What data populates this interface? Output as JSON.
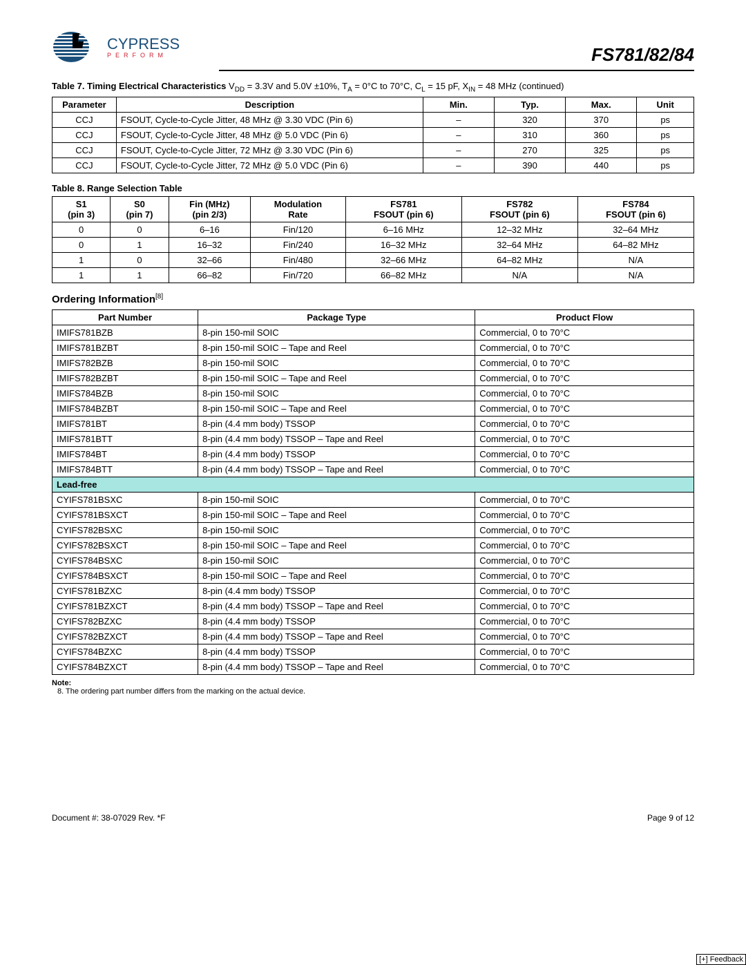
{
  "header": {
    "logo_name": "CYPRESS",
    "logo_tag": "PERFORM",
    "part": "FS781/82/84"
  },
  "table7": {
    "caption_bold": "Table 7. Timing Electrical Characteristics ",
    "caption_rest_a": "V",
    "caption_rest_b": " = 3.3V and 5.0V ±10%, T",
    "caption_rest_c": " = 0°C to 70°C, C",
    "caption_rest_d": " = 15 pF, X",
    "caption_rest_e": " = 48 MHz  (continued)",
    "cols": [
      "Parameter",
      "Description",
      "Min.",
      "Typ.",
      "Max.",
      "Unit"
    ],
    "rows": [
      [
        "CCJ",
        "FSOUT, Cycle-to-Cycle Jitter, 48 MHz @ 3.30 VDC (Pin 6)",
        "–",
        "320",
        "370",
        "ps"
      ],
      [
        "CCJ",
        "FSOUT, Cycle-to-Cycle Jitter, 48 MHz @ 5.0 VDC (Pin 6)",
        "–",
        "310",
        "360",
        "ps"
      ],
      [
        "CCJ",
        "FSOUT, Cycle-to-Cycle Jitter, 72 MHz @ 3.30 VDC (Pin 6)",
        "–",
        "270",
        "325",
        "ps"
      ],
      [
        "CCJ",
        "FSOUT, Cycle-to-Cycle Jitter, 72 MHz @ 5.0 VDC (Pin 6)",
        "–",
        "390",
        "440",
        "ps"
      ]
    ]
  },
  "table8": {
    "caption": "Table 8. Range Selection Table",
    "cols": [
      {
        "l1": "S1",
        "l2": "(pin 3)"
      },
      {
        "l1": "S0",
        "l2": "(pin 7)"
      },
      {
        "l1": "Fin (MHz)",
        "l2": "(pin 2/3)"
      },
      {
        "l1": "Modulation",
        "l2": "Rate"
      },
      {
        "l1": "FS781",
        "l2": "FSOUT (pin 6)"
      },
      {
        "l1": "FS782",
        "l2": "FSOUT (pin 6)"
      },
      {
        "l1": "FS784",
        "l2": "FSOUT (pin 6)"
      }
    ],
    "rows": [
      [
        "0",
        "0",
        "6–16",
        "Fin/120",
        "6–16 MHz",
        "12–32 MHz",
        "32–64 MHz"
      ],
      [
        "0",
        "1",
        "16–32",
        "Fin/240",
        "16–32 MHz",
        "32–64 MHz",
        "64–82 MHz"
      ],
      [
        "1",
        "0",
        "32–66",
        "Fin/480",
        "32–66 MHz",
        "64–82 MHz",
        "N/A"
      ],
      [
        "1",
        "1",
        "66–82",
        "Fin/720",
        "66–82 MHz",
        "N/A",
        "N/A"
      ]
    ]
  },
  "ordering": {
    "heading": "Ordering Information",
    "note_ref": "[8]",
    "cols": [
      "Part Number",
      "Package Type",
      "Product Flow"
    ],
    "rows": [
      [
        "IMIFS781BZB",
        "8-pin 150-mil SOIC",
        "Commercial, 0 to 70°C"
      ],
      [
        "IMIFS781BZBT",
        "8-pin 150-mil SOIC – Tape and Reel",
        "Commercial, 0 to 70°C"
      ],
      [
        "IMIFS782BZB",
        "8-pin 150-mil SOIC",
        "Commercial, 0 to 70°C"
      ],
      [
        "IMIFS782BZBT",
        "8-pin 150-mil SOIC – Tape and Reel",
        "Commercial, 0 to 70°C"
      ],
      [
        "IMIFS784BZB",
        "8-pin 150-mil SOIC",
        "Commercial, 0 to 70°C"
      ],
      [
        "IMIFS784BZBT",
        "8-pin 150-mil SOIC – Tape and Reel",
        "Commercial, 0 to 70°C"
      ],
      [
        "IMIFS781BT",
        "8-pin (4.4 mm body) TSSOP",
        "Commercial, 0 to 70°C"
      ],
      [
        "IMIFS781BTT",
        "8-pin (4.4 mm body) TSSOP – Tape and Reel",
        "Commercial, 0 to 70°C"
      ],
      [
        "IMIFS784BT",
        "8-pin (4.4 mm body) TSSOP",
        "Commercial, 0 to 70°C"
      ],
      [
        "IMIFS784BTT",
        "8-pin (4.4 mm body) TSSOP – Tape and Reel",
        "Commercial, 0 to 70°C"
      ]
    ],
    "lead_free": "Lead-free",
    "rows2": [
      [
        "CYIFS781BSXC",
        "8-pin 150-mil SOIC",
        "Commercial, 0 to 70°C"
      ],
      [
        "CYIFS781BSXCT",
        "8-pin 150-mil SOIC – Tape and Reel",
        "Commercial, 0 to 70°C"
      ],
      [
        "CYIFS782BSXC",
        "8-pin 150-mil SOIC",
        "Commercial, 0 to 70°C"
      ],
      [
        "CYIFS782BSXCT",
        "8-pin 150-mil SOIC – Tape and Reel",
        "Commercial, 0 to 70°C"
      ],
      [
        "CYIFS784BSXC",
        "8-pin 150-mil SOIC",
        "Commercial, 0 to 70°C"
      ],
      [
        "CYIFS784BSXCT",
        "8-pin 150-mil SOIC – Tape and Reel",
        "Commercial, 0 to 70°C"
      ],
      [
        "CYIFS781BZXC",
        "8-pin (4.4 mm body) TSSOP",
        "Commercial, 0 to 70°C"
      ],
      [
        "CYIFS781BZXCT",
        "8-pin (4.4 mm body) TSSOP – Tape and Reel",
        "Commercial, 0 to 70°C"
      ],
      [
        "CYIFS782BZXC",
        "8-pin (4.4 mm body) TSSOP",
        "Commercial, 0 to 70°C"
      ],
      [
        "CYIFS782BZXCT",
        "8-pin (4.4 mm body) TSSOP – Tape and Reel",
        "Commercial, 0 to 70°C"
      ],
      [
        "CYIFS784BZXC",
        "8-pin (4.4 mm body) TSSOP",
        "Commercial, 0 to 70°C"
      ],
      [
        "CYIFS784BZXCT",
        "8-pin (4.4 mm body) TSSOP – Tape and Reel",
        "Commercial, 0 to 70°C"
      ]
    ]
  },
  "note": {
    "heading": "Note:",
    "text": "8.  The ordering part number differs from the marking on the actual device."
  },
  "footer": {
    "doc": "Document #: 38-07029  Rev. *F",
    "page": "Page 9 of 12",
    "feedback": "Feedback"
  }
}
